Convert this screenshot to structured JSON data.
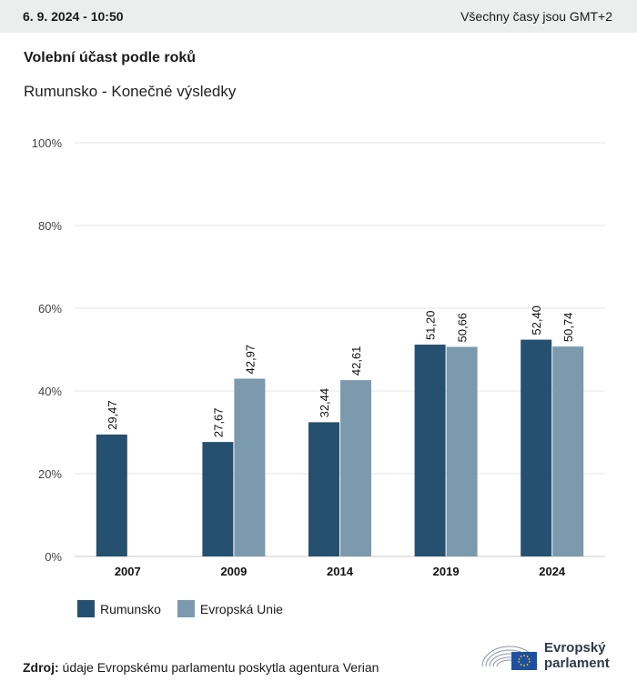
{
  "header": {
    "date": "6. 9. 2024 - 10:50",
    "timezone_note": "Všechny časy jsou GMT+2"
  },
  "title": "Volební účast podle roků",
  "subtitle": "Rumunsko - Konečné výsledky",
  "colors": {
    "series_1": "#26506f",
    "series_2": "#7c9aae",
    "grid": "#e4e4e4",
    "axis": "#c8c8c8"
  },
  "chart_data": {
    "type": "bar",
    "categories": [
      "2007",
      "2009",
      "2014",
      "2019",
      "2024"
    ],
    "series": [
      {
        "name": "Rumunsko",
        "values": [
          29.47,
          27.67,
          32.44,
          51.2,
          52.4
        ],
        "labels": [
          "29,47",
          "27,67",
          "32,44",
          "51,20",
          "52,40"
        ]
      },
      {
        "name": "Evropská Unie",
        "values": [
          null,
          42.97,
          42.61,
          50.66,
          50.74
        ],
        "labels": [
          "",
          "42,97",
          "42,61",
          "50,66",
          "50,74"
        ]
      }
    ],
    "ylim": [
      0,
      100
    ],
    "yticks": [
      0,
      20,
      40,
      60,
      80,
      100
    ],
    "ytick_labels": [
      "0%",
      "20%",
      "40%",
      "60%",
      "80%",
      "100%"
    ],
    "grid": true,
    "legend": "bottom-left"
  },
  "source": {
    "label": "Zdroj:",
    "text": "údaje Evropskému parlamentu poskytla agentura Verian"
  },
  "logo": {
    "line1": "Evropský",
    "line2": "parlament",
    "icon": "european-parliament-logo-icon"
  }
}
